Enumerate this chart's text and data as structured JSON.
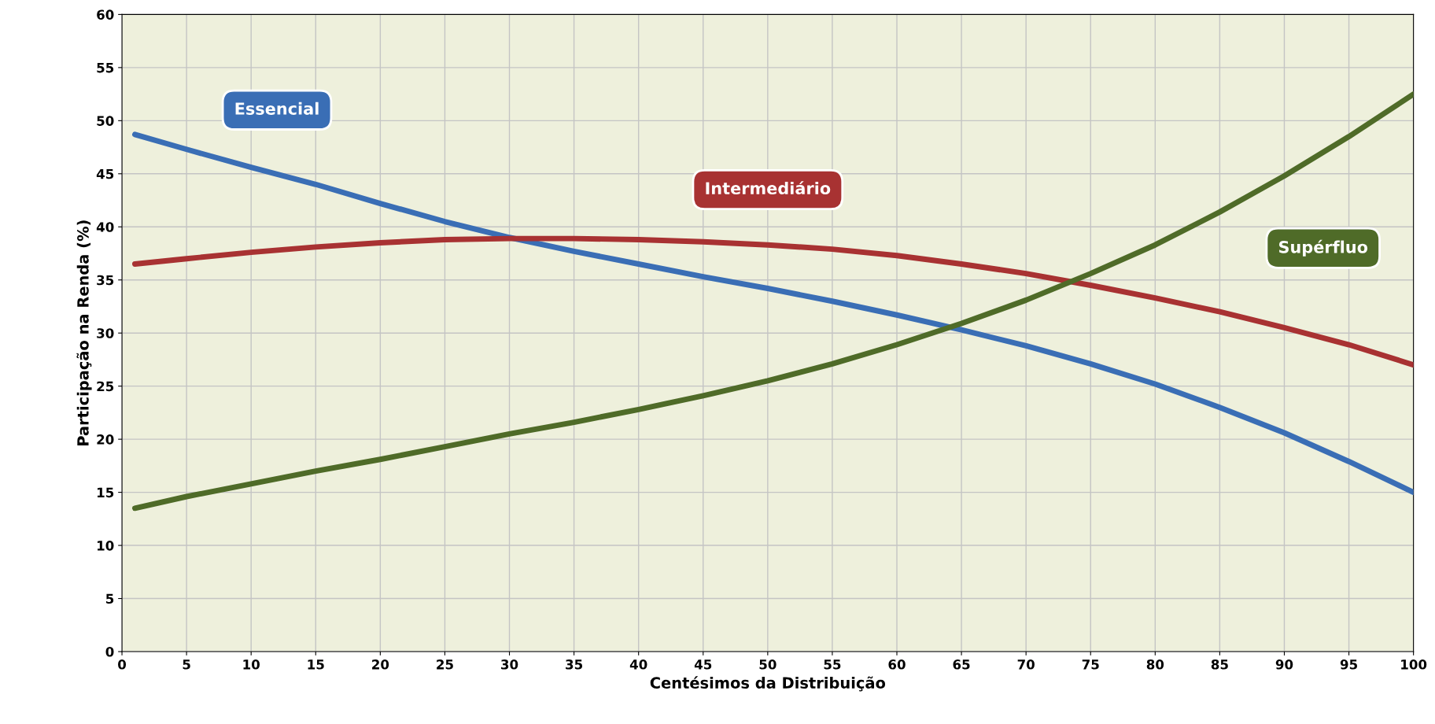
{
  "chart_data": {
    "type": "line",
    "xlabel": "Centésimos da Distribuição",
    "ylabel": "Participação na Renda (%)",
    "x": [
      1,
      5,
      10,
      15,
      20,
      25,
      30,
      35,
      40,
      45,
      50,
      55,
      60,
      65,
      70,
      75,
      80,
      85,
      90,
      95,
      100
    ],
    "series": [
      {
        "name": "Essencial",
        "color": "#3a6eb5",
        "values": [
          48.7,
          47.3,
          45.6,
          44,
          42.2,
          40.5,
          39,
          37.7,
          36.5,
          35.3,
          34.2,
          33,
          31.7,
          30.3,
          28.8,
          27.1,
          25.2,
          23,
          20.6,
          17.9,
          15
        ]
      },
      {
        "name": "Intermediário",
        "color": "#a83232",
        "values": [
          36.5,
          37,
          37.6,
          38.1,
          38.5,
          38.8,
          38.9,
          38.9,
          38.8,
          38.6,
          38.3,
          37.9,
          37.3,
          36.5,
          35.6,
          34.5,
          33.3,
          32,
          30.5,
          28.9,
          27
        ]
      },
      {
        "name": "Supérfluo",
        "color": "#4f6b28",
        "values": [
          13.5,
          14.6,
          15.8,
          17,
          18.1,
          19.3,
          20.5,
          21.6,
          22.8,
          24.1,
          25.5,
          27.1,
          28.9,
          30.9,
          33.1,
          35.6,
          38.3,
          41.4,
          44.8,
          48.5,
          52.5
        ]
      }
    ],
    "xlim": [
      0,
      100
    ],
    "xticks": [
      0,
      5,
      10,
      15,
      20,
      25,
      30,
      35,
      40,
      45,
      50,
      55,
      60,
      65,
      70,
      75,
      80,
      85,
      90,
      95,
      100
    ],
    "ylim": [
      0,
      60
    ],
    "yticks": [
      0,
      5,
      10,
      15,
      20,
      25,
      30,
      35,
      40,
      45,
      50,
      55,
      60
    ],
    "grid": true,
    "marker": "none",
    "line_style": "solid"
  }
}
